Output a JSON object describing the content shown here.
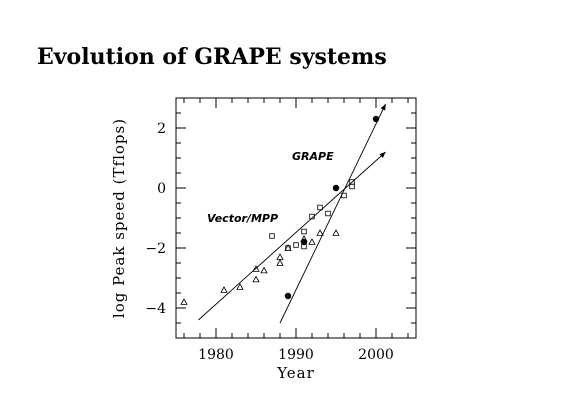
{
  "page": {
    "title": "Evolution of GRAPE systems"
  },
  "chart_data": {
    "type": "scatter",
    "title": "Evolution of GRAPE systems",
    "xlabel": "Year",
    "ylabel": "log Peak speed (Tflops)",
    "xlim": [
      1975,
      2005
    ],
    "ylim": [
      -5,
      3
    ],
    "x_ticks": [
      "1980",
      "1990",
      "2000"
    ],
    "y_ticks": [
      "−4",
      "−2",
      "0",
      "2"
    ],
    "annotations": [
      "GRAPE",
      "Vector/MPP"
    ],
    "series": [
      {
        "marker": "filled-circle",
        "points": [
          [
            1989,
            -3.6
          ],
          [
            1991,
            -1.8
          ],
          [
            1995,
            0.0
          ],
          [
            2000,
            2.3
          ]
        ]
      },
      {
        "marker": "open-triangle",
        "points": [
          [
            1976,
            -3.8
          ],
          [
            1981,
            -3.4
          ],
          [
            1983,
            -3.3
          ],
          [
            1985,
            -3.05
          ],
          [
            1985,
            -2.7
          ],
          [
            1986,
            -2.75
          ],
          [
            1988,
            -2.3
          ],
          [
            1988,
            -2.5
          ],
          [
            1989,
            -2.0
          ],
          [
            1991,
            -1.7
          ],
          [
            1992,
            -1.8
          ],
          [
            1993,
            -1.5
          ],
          [
            1995,
            -1.5
          ]
        ]
      },
      {
        "marker": "open-square",
        "points": [
          [
            1987,
            -1.6
          ],
          [
            1989,
            -2.0
          ],
          [
            1990,
            -1.9
          ],
          [
            1991,
            -1.95
          ],
          [
            1991,
            -1.45
          ],
          [
            1992,
            -0.95
          ],
          [
            1993,
            -0.65
          ],
          [
            1994,
            -0.85
          ],
          [
            1996,
            -0.25
          ],
          [
            1997,
            0.05
          ],
          [
            1997,
            0.2
          ]
        ]
      }
    ],
    "trend_lines": [
      {
        "name": "GRAPE",
        "from": [
          1988,
          -4.5
        ],
        "to": [
          2001.2,
          2.8
        ]
      },
      {
        "name": "Vector/MPP",
        "from": [
          1977.8,
          -4.4
        ],
        "to": [
          2001.2,
          1.2
        ]
      }
    ]
  }
}
